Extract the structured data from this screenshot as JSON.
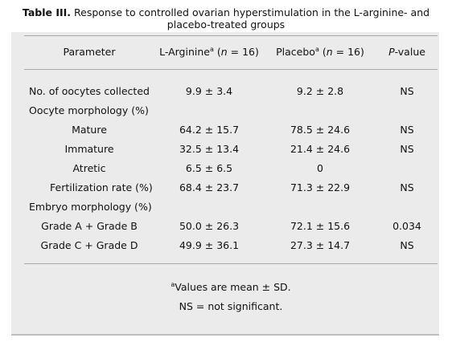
{
  "table": {
    "title_label": "Table III.",
    "title_text": "Response to controlled ovarian hyperstimulation in the L-arginine- and placebo-treated groups",
    "headers": {
      "parameter": "Parameter",
      "larginine": "L-Arginine",
      "larginine_sup": "a",
      "larginine_n_pre": " (",
      "larginine_n": "n",
      "larginine_n_post": " = 16)",
      "placebo": "Placebo",
      "placebo_sup": "a",
      "placebo_n_pre": " (",
      "placebo_n": "n",
      "placebo_n_post": " = 16)",
      "pvalue_p": "P",
      "pvalue_rest": "-value"
    },
    "rows": [
      {
        "parameter": "No. of oocytes collected",
        "larginine": "9.9 ± 3.4",
        "placebo": "9.2 ± 2.8",
        "pvalue": "NS"
      },
      {
        "parameter": "Oocyte morphology (%)",
        "larginine": "",
        "placebo": "",
        "pvalue": ""
      },
      {
        "parameter": "Mature",
        "larginine": "64.2 ± 15.7",
        "placebo": "78.5 ± 24.6",
        "pvalue": "NS"
      },
      {
        "parameter": "Immature",
        "larginine": "32.5 ± 13.4",
        "placebo": "21.4 ± 24.6",
        "pvalue": "NS"
      },
      {
        "parameter": "Atretic",
        "larginine": "6.5 ± 6.5",
        "placebo": "0",
        "pvalue": ""
      },
      {
        "parameter": "Fertilization rate (%)",
        "larginine": "68.4 ± 23.7",
        "placebo": "71.3 ± 22.9",
        "pvalue": "NS"
      },
      {
        "parameter": "Embryo morphology (%)",
        "larginine": "",
        "placebo": "",
        "pvalue": ""
      },
      {
        "parameter": "Grade A + Grade B",
        "larginine": "50.0 ± 26.3",
        "placebo": "72.1 ± 15.6",
        "pvalue": "0.034"
      },
      {
        "parameter": "Grade C + Grade D",
        "larginine": "49.9 ± 36.1",
        "placebo": "27.3 ± 14.7",
        "pvalue": "NS"
      }
    ],
    "footnotes": {
      "f1_sup": "a",
      "f1_text": "Values are mean ± SD.",
      "f2_text": "NS = not significant."
    }
  }
}
